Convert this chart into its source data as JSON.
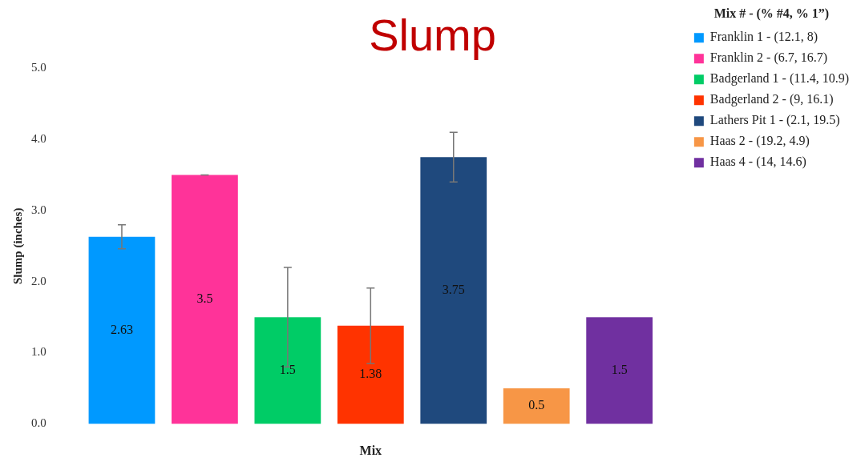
{
  "chart_data": {
    "type": "bar",
    "title": "Slump",
    "xlabel": "Mix",
    "ylabel": "Slump (inches)",
    "legend_title": "Mix # - (% #4, % 1”)",
    "categories": [
      null
    ],
    "series": [
      {
        "name": "Franklin 1 - (12.1, 8)",
        "color": "#0099ff",
        "values": [
          2.63
        ],
        "errors": [
          0.17
        ]
      },
      {
        "name": "Franklin 2 - (6.7, 16.7)",
        "color": "#ff3399",
        "values": [
          3.5
        ],
        "errors": [
          0
        ]
      },
      {
        "name": "Badgerland 1 - (11.4, 10.9)",
        "color": "#00cc66",
        "values": [
          1.5
        ],
        "errors": [
          0.7
        ]
      },
      {
        "name": "Badgerland 2 - (9, 16.1)",
        "color": "#ff3300",
        "values": [
          1.38
        ],
        "errors": [
          0.53
        ]
      },
      {
        "name": "Lathers Pit 1 - (2.1, 19.5)",
        "color": "#1f497d",
        "values": [
          3.75
        ],
        "errors": [
          0.35
        ]
      },
      {
        "name": "Haas 2 - (19.2, 4.9)",
        "color": "#f79646",
        "values": [
          0.5
        ]
      },
      {
        "name": "Haas 4 - (14, 14.6)",
        "color": "#7030a0",
        "values": [
          1.5
        ]
      }
    ],
    "ylim": [
      0,
      5
    ],
    "yticks": [
      {
        "value": 0,
        "label": "0.0"
      },
      {
        "value": 1,
        "label": "1.0"
      },
      {
        "value": 2,
        "label": "2.0"
      },
      {
        "value": 3,
        "label": "3.0"
      },
      {
        "value": 4,
        "label": "4.0"
      },
      {
        "value": 5,
        "label": "5.0"
      }
    ],
    "grid": false,
    "legend": "top right",
    "data_labels": true
  }
}
